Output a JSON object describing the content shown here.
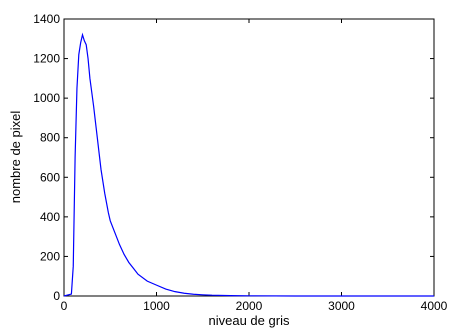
{
  "chart_data": {
    "type": "line",
    "xlabel": "niveau de gris",
    "ylabel": "nombre de pixel",
    "xlim": [
      0,
      4000
    ],
    "ylim": [
      0,
      1400
    ],
    "xticks": [
      0,
      1000,
      2000,
      3000,
      4000
    ],
    "yticks": [
      0,
      200,
      400,
      600,
      800,
      1000,
      1200,
      1400
    ],
    "grid": false,
    "series": [
      {
        "color": "#0000ff",
        "x": [
          0,
          80,
          100,
          120,
          140,
          160,
          180,
          200,
          220,
          240,
          260,
          280,
          300,
          320,
          340,
          360,
          380,
          400,
          420,
          440,
          460,
          480,
          500,
          550,
          600,
          650,
          700,
          750,
          800,
          900,
          1000,
          1100,
          1200,
          1300,
          1400,
          1500,
          1600,
          1800,
          2000,
          2500,
          3000,
          3500,
          4000
        ],
        "y": [
          0,
          10,
          150,
          700,
          1050,
          1220,
          1280,
          1320,
          1290,
          1270,
          1200,
          1100,
          1030,
          960,
          880,
          800,
          720,
          640,
          580,
          520,
          470,
          420,
          380,
          320,
          260,
          210,
          170,
          140,
          110,
          75,
          55,
          35,
          22,
          14,
          9,
          6,
          4,
          2,
          1,
          0,
          0,
          0,
          0
        ]
      }
    ]
  }
}
